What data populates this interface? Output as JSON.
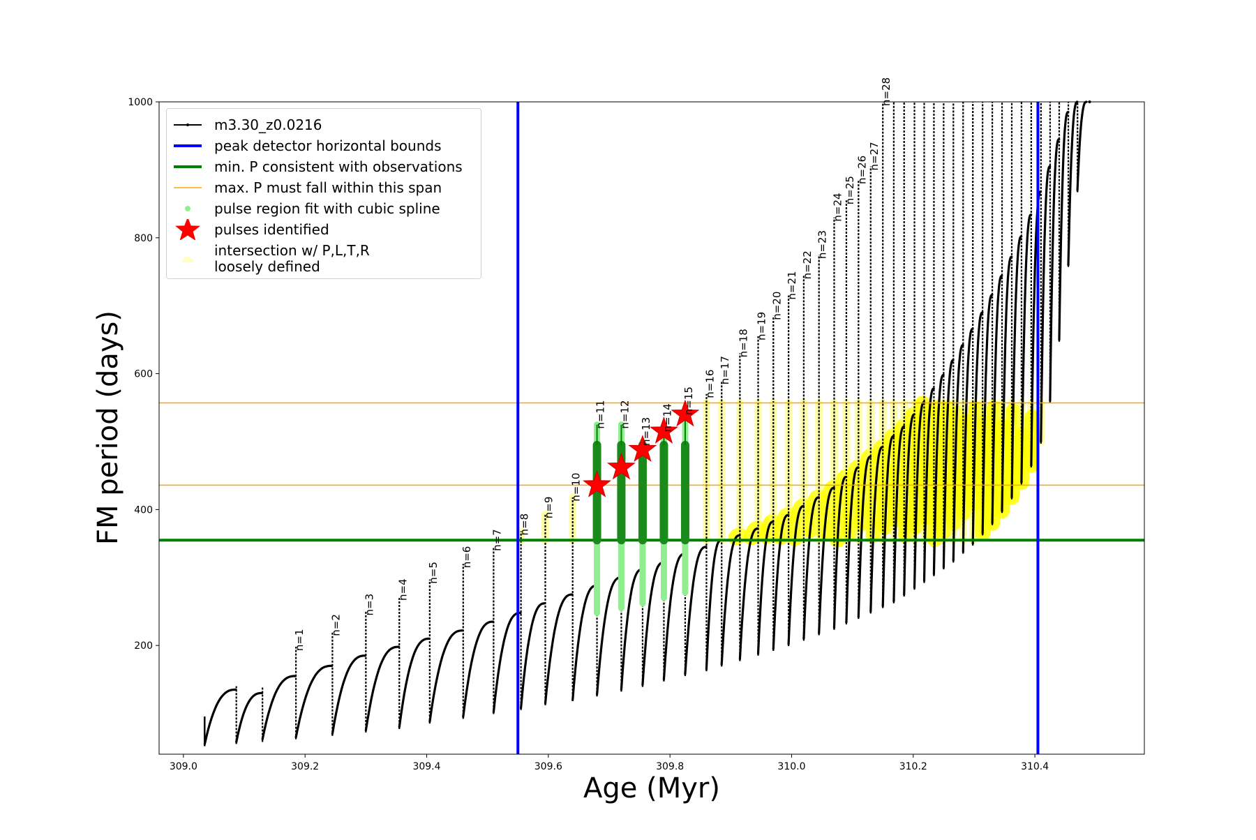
{
  "chart_data": {
    "type": "line",
    "xlabel": "Age (Myr)",
    "ylabel": "FM period (days)",
    "xlim": [
      308.96,
      310.58
    ],
    "ylim": [
      40,
      1000
    ],
    "xticks": [
      "309.0",
      "309.2",
      "309.4",
      "309.6",
      "309.8",
      "310.0",
      "310.2",
      "310.4"
    ],
    "xtick_values": [
      309.0,
      309.2,
      309.4,
      309.6,
      309.8,
      310.0,
      310.2,
      310.4
    ],
    "yticks": [
      "200",
      "400",
      "600",
      "800",
      "1000"
    ],
    "ytick_values": [
      200,
      400,
      600,
      800,
      1000
    ],
    "grid": false,
    "legend_position": "top-left",
    "legend": [
      {
        "label": "m3.30_z0.0216",
        "style": "line-marker",
        "color": "#000000"
      },
      {
        "label": "peak detector horizontal bounds",
        "style": "line",
        "color": "#0000ff"
      },
      {
        "label": "min. P consistent with observations",
        "style": "line",
        "color": "#008000"
      },
      {
        "label": "max. P must fall within this span",
        "style": "thin-line",
        "color": "#ffa500"
      },
      {
        "label": "pulse region fit with cubic spline",
        "style": "dot",
        "color": "#90ee90"
      },
      {
        "label": "pulses identified",
        "style": "star",
        "color": "#ff0000"
      },
      {
        "label": "intersection w/ P,L,T,R\nloosely defined",
        "style": "circle",
        "color": "#ffffaa"
      }
    ],
    "vertical_bounds": [
      309.55,
      310.405
    ],
    "min_period": 355,
    "max_period_span": [
      436,
      557
    ],
    "cycles": [
      {
        "n": 0,
        "t": 309.035,
        "p0": 55,
        "pk": 135,
        "dip": 52,
        "top": 95
      },
      {
        "n": 0,
        "t": 309.087,
        "p0": 58,
        "pk": 130,
        "dip": 55,
        "top": 140
      },
      {
        "n": 0,
        "t": 309.13,
        "p0": 62,
        "pk": 155,
        "dip": 58,
        "top": 140
      },
      {
        "n": 1,
        "t": 309.185,
        "p0": 65,
        "pk": 170,
        "dip": 62,
        "top": 198
      },
      {
        "n": 2,
        "t": 309.245,
        "p0": 70,
        "pk": 185,
        "dip": 67,
        "top": 220
      },
      {
        "n": 3,
        "t": 309.3,
        "p0": 75,
        "pk": 198,
        "dip": 72,
        "top": 250
      },
      {
        "n": 4,
        "t": 309.355,
        "p0": 80,
        "pk": 210,
        "dip": 77,
        "top": 272
      },
      {
        "n": 5,
        "t": 309.405,
        "p0": 88,
        "pk": 222,
        "dip": 85,
        "top": 297
      },
      {
        "n": 6,
        "t": 309.46,
        "p0": 95,
        "pk": 235,
        "dip": 92,
        "top": 320
      },
      {
        "n": 7,
        "t": 309.51,
        "p0": 102,
        "pk": 248,
        "dip": 99,
        "top": 345
      },
      {
        "n": 8,
        "t": 309.555,
        "p0": 108,
        "pk": 262,
        "dip": 105,
        "top": 368
      },
      {
        "n": 9,
        "t": 309.595,
        "p0": 115,
        "pk": 275,
        "dip": 112,
        "top": 393
      },
      {
        "n": 10,
        "t": 309.64,
        "p0": 120,
        "pk": 288,
        "dip": 118,
        "top": 418
      },
      {
        "n": 11,
        "t": 309.68,
        "p0": 128,
        "pk": 300,
        "dip": 125,
        "top": 525
      },
      {
        "n": 12,
        "t": 309.72,
        "p0": 135,
        "pk": 312,
        "dip": 132,
        "top": 525
      },
      {
        "n": 13,
        "t": 309.755,
        "p0": 142,
        "pk": 322,
        "dip": 139,
        "top": 500
      },
      {
        "n": 14,
        "t": 309.79,
        "p0": 150,
        "pk": 335,
        "dip": 147,
        "top": 520
      },
      {
        "n": 15,
        "t": 309.825,
        "p0": 158,
        "pk": 345,
        "dip": 155,
        "top": 545
      },
      {
        "n": 16,
        "t": 309.86,
        "p0": 165,
        "pk": 355,
        "dip": 162,
        "top": 570
      },
      {
        "n": 17,
        "t": 309.885,
        "p0": 172,
        "pk": 362,
        "dip": 169,
        "top": 590
      },
      {
        "n": 18,
        "t": 309.915,
        "p0": 180,
        "pk": 372,
        "dip": 177,
        "top": 630
      },
      {
        "n": 19,
        "t": 309.945,
        "p0": 188,
        "pk": 382,
        "dip": 185,
        "top": 655
      },
      {
        "n": 20,
        "t": 309.97,
        "p0": 195,
        "pk": 392,
        "dip": 192,
        "top": 685
      },
      {
        "n": 21,
        "t": 309.995,
        "p0": 202,
        "pk": 405,
        "dip": 199,
        "top": 715
      },
      {
        "n": 22,
        "t": 310.02,
        "p0": 210,
        "pk": 418,
        "dip": 207,
        "top": 745
      },
      {
        "n": 23,
        "t": 310.045,
        "p0": 218,
        "pk": 432,
        "dip": 215,
        "top": 775
      },
      {
        "n": 24,
        "t": 310.07,
        "p0": 226,
        "pk": 448,
        "dip": 223,
        "top": 830
      },
      {
        "n": 25,
        "t": 310.09,
        "p0": 234,
        "pk": 462,
        "dip": 231,
        "top": 855
      },
      {
        "n": 26,
        "t": 310.11,
        "p0": 242,
        "pk": 478,
        "dip": 239,
        "top": 885
      },
      {
        "n": 27,
        "t": 310.13,
        "p0": 250,
        "pk": 492,
        "dip": 247,
        "top": 905
      },
      {
        "n": 28,
        "t": 310.15,
        "p0": 258,
        "pk": 508,
        "dip": 255,
        "top": 1000
      },
      {
        "n": 0,
        "t": 310.168,
        "p0": 265,
        "pk": 522,
        "dip": 262,
        "top": 1000
      },
      {
        "n": 0,
        "t": 310.185,
        "p0": 275,
        "pk": 540,
        "dip": 272,
        "top": 1000
      },
      {
        "n": 0,
        "t": 310.202,
        "p0": 285,
        "pk": 558,
        "dip": 282,
        "top": 1000
      },
      {
        "n": 0,
        "t": 310.218,
        "p0": 295,
        "pk": 578,
        "dip": 292,
        "top": 1000
      },
      {
        "n": 0,
        "t": 310.234,
        "p0": 305,
        "pk": 598,
        "dip": 302,
        "top": 1000
      },
      {
        "n": 0,
        "t": 310.25,
        "p0": 315,
        "pk": 620,
        "dip": 312,
        "top": 1000
      },
      {
        "n": 0,
        "t": 310.266,
        "p0": 325,
        "pk": 642,
        "dip": 322,
        "top": 1000
      },
      {
        "n": 0,
        "t": 310.282,
        "p0": 338,
        "pk": 666,
        "dip": 335,
        "top": 1000
      },
      {
        "n": 0,
        "t": 310.298,
        "p0": 350,
        "pk": 690,
        "dip": 347,
        "top": 1000
      },
      {
        "n": 0,
        "t": 310.314,
        "p0": 365,
        "pk": 716,
        "dip": 362,
        "top": 1000
      },
      {
        "n": 0,
        "t": 310.33,
        "p0": 380,
        "pk": 744,
        "dip": 377,
        "top": 1000
      },
      {
        "n": 0,
        "t": 310.346,
        "p0": 398,
        "pk": 772,
        "dip": 395,
        "top": 1000
      },
      {
        "n": 0,
        "t": 310.362,
        "p0": 418,
        "pk": 802,
        "dip": 415,
        "top": 1000
      },
      {
        "n": 0,
        "t": 310.378,
        "p0": 440,
        "pk": 834,
        "dip": 437,
        "top": 1000
      },
      {
        "n": 0,
        "t": 310.394,
        "p0": 465,
        "pk": 868,
        "dip": 462,
        "top": 1000
      },
      {
        "n": 0,
        "t": 310.41,
        "p0": 500,
        "pk": 905,
        "dip": 497,
        "top": 1000
      },
      {
        "n": 0,
        "t": 310.425,
        "p0": 560,
        "pk": 945,
        "dip": 557,
        "top": 1000
      },
      {
        "n": 0,
        "t": 310.44,
        "p0": 650,
        "pk": 985,
        "dip": 647,
        "top": 1000
      },
      {
        "n": 0,
        "t": 310.455,
        "p0": 760,
        "pk": 1000,
        "dip": 757,
        "top": 1000
      },
      {
        "n": 0,
        "t": 310.47,
        "p0": 870,
        "pk": 1000,
        "dip": 867,
        "top": 1000
      }
    ],
    "spline_cycles": [
      11,
      12,
      13,
      14,
      15
    ],
    "pulses_identified": [
      {
        "x": 309.68,
        "y": 436
      },
      {
        "x": 309.72,
        "y": 462
      },
      {
        "x": 309.755,
        "y": 488
      },
      {
        "x": 309.79,
        "y": 515
      },
      {
        "x": 309.825,
        "y": 540
      }
    ],
    "n_labels": [
      "n=1",
      "n=2",
      "n=3",
      "n=4",
      "n=5",
      "n=6",
      "n=7",
      "n=8",
      "n=9",
      "n=10",
      "n=11",
      "n=12",
      "n=13",
      "n=14",
      "n=15",
      "n=16",
      "n=17",
      "n=18",
      "n=19",
      "n=20",
      "n=21",
      "n=22",
      "n=23",
      "n=24",
      "n=25",
      "n=26",
      "n=27",
      "n=28"
    ]
  }
}
